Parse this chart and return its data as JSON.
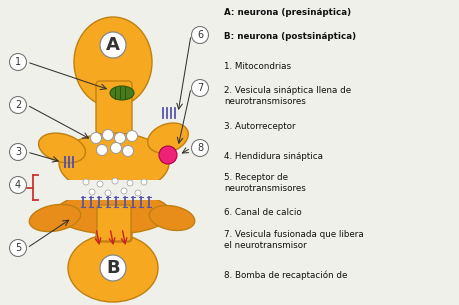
{
  "background_color": "#f0f0eb",
  "legend_items": [
    "A: neurona (presináptica)",
    "B: neurona (postsináptica)",
    "1. Mitocondrias",
    "2. Vesicula sináptica llena de\nneurotransmisores",
    "3. Autorreceptor",
    "4. Hendidura sináptica",
    "5. Receptor de\nneurotransmisores",
    "6. Canal de calcio",
    "7. Vesicula fusionada que libera\nel neurotransmisor",
    "8. Bomba de recaptación de"
  ],
  "gold": "#f5a820",
  "gold_edge": "#c08010",
  "orange_b": "#e88c1a",
  "text_color": "#111111",
  "arrow_color": "#333333",
  "blue_receptor": "#5555aa",
  "mito_color": "#4a7a20",
  "fused_color": "#ee2277",
  "cleft_dot_color": "#cccccc"
}
